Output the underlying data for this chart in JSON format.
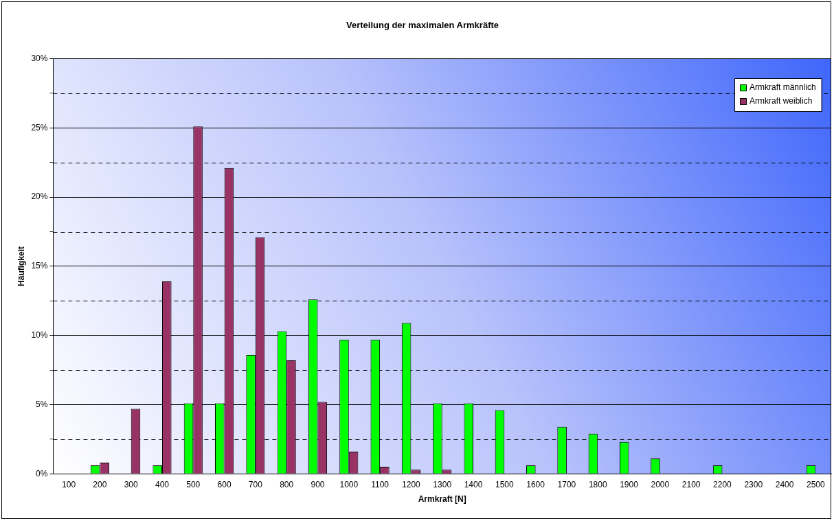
{
  "chart_data": {
    "type": "bar",
    "title": "Verteilung der maximalen Armkräfte",
    "xlabel": "Armkraft [N]",
    "ylabel": "Häufigkeit",
    "categories": [
      "100",
      "200",
      "300",
      "400",
      "500",
      "600",
      "700",
      "800",
      "900",
      "1000",
      "1100",
      "1200",
      "1300",
      "1400",
      "1500",
      "1600",
      "1700",
      "1800",
      "1900",
      "2000",
      "2100",
      "2200",
      "2300",
      "2400",
      "2500"
    ],
    "series": [
      {
        "name": "Armkraft männlich",
        "color": "#00ff00",
        "values": [
          0,
          0.6,
          0,
          0.6,
          5.1,
          5.1,
          8.6,
          10.3,
          12.6,
          9.7,
          9.7,
          10.9,
          5.1,
          5.1,
          4.6,
          0.6,
          3.4,
          2.9,
          2.3,
          1.1,
          0,
          0.6,
          0,
          0,
          0.6
        ]
      },
      {
        "name": "Armkraft weiblich",
        "color": "#993366",
        "values": [
          0,
          0.8,
          4.7,
          13.9,
          25.1,
          22.1,
          17.1,
          8.2,
          5.2,
          1.6,
          0.5,
          0.3,
          0.3,
          0,
          0,
          0,
          0,
          0,
          0,
          0,
          0,
          0,
          0,
          0,
          0
        ]
      }
    ],
    "ylim": [
      0,
      30
    ],
    "yticks": [
      {
        "value": 0,
        "label": "0%"
      },
      {
        "value": 2.5,
        "label": null
      },
      {
        "value": 5,
        "label": "5%"
      },
      {
        "value": 7.5,
        "label": null
      },
      {
        "value": 10,
        "label": "10%"
      },
      {
        "value": 12.5,
        "label": null
      },
      {
        "value": 15,
        "label": "15%"
      },
      {
        "value": 17.5,
        "label": null
      },
      {
        "value": 20,
        "label": "20%"
      },
      {
        "value": 22.5,
        "label": null
      },
      {
        "value": 25,
        "label": "25%"
      },
      {
        "value": 27.5,
        "label": null
      },
      {
        "value": 30,
        "label": "30%"
      }
    ],
    "grid": "y",
    "legend": "top right"
  }
}
